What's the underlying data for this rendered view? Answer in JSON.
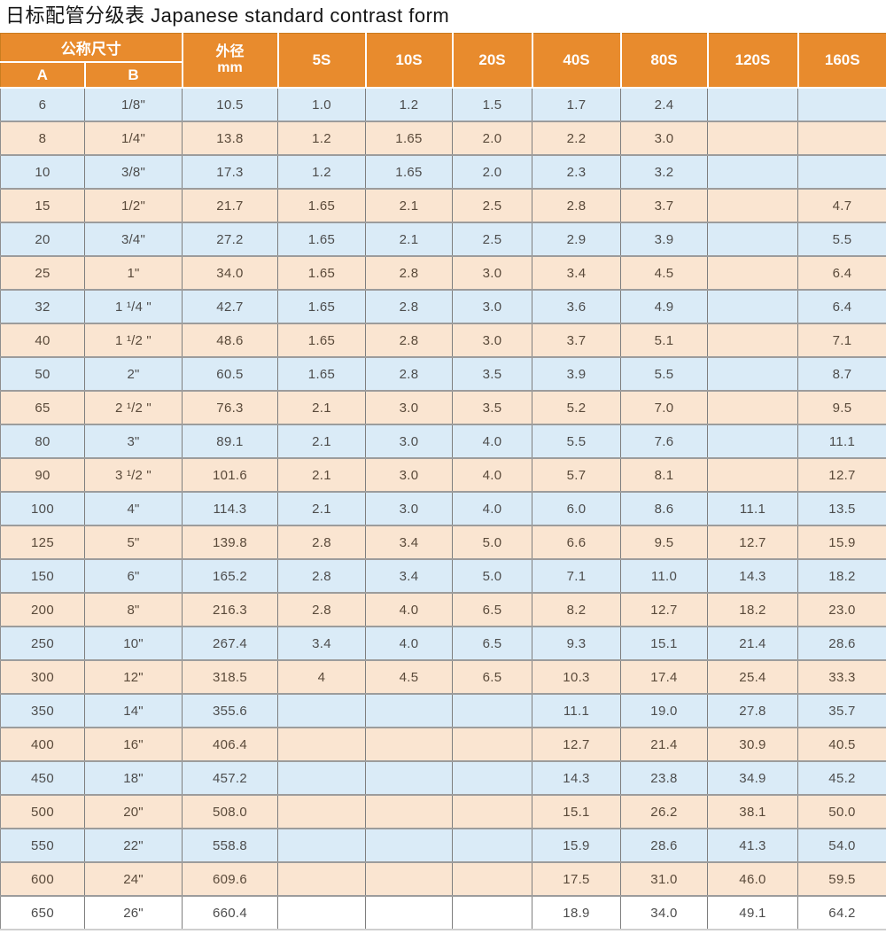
{
  "title": "日标配管分级表 Japanese standard contrast form",
  "colors": {
    "header_bg": "#E88B2D",
    "row_blue": "#DAEBF7",
    "row_peach": "#FAE5D1",
    "row_last_white": "#FFFFFF",
    "header_text": "#FFFFFF",
    "cell_text": "#4D4D4D"
  },
  "table": {
    "header": {
      "nominal_size": "公称尺寸",
      "col_a": "A",
      "col_b": "B",
      "outer_diameter_line1": "外径",
      "outer_diameter_line2": "mm",
      "schedules": [
        "5S",
        "10S",
        "20S",
        "40S",
        "80S",
        "120S",
        "160S"
      ]
    },
    "col_keys": [
      "a",
      "b",
      "od-mm",
      "5s",
      "10s",
      "20s",
      "40s",
      "80s",
      "120s",
      "160s"
    ],
    "rows": [
      [
        "6",
        "1/8\"",
        "10.5",
        "1.0",
        "1.2",
        "1.5",
        "1.7",
        "2.4",
        "",
        ""
      ],
      [
        "8",
        "1/4\"",
        "13.8",
        "1.2",
        "1.65",
        "2.0",
        "2.2",
        "3.0",
        "",
        ""
      ],
      [
        "10",
        "3/8\"",
        "17.3",
        "1.2",
        "1.65",
        "2.0",
        "2.3",
        "3.2",
        "",
        ""
      ],
      [
        "15",
        "1/2\"",
        "21.7",
        "1.65",
        "2.1",
        "2.5",
        "2.8",
        "3.7",
        "",
        "4.7"
      ],
      [
        "20",
        "3/4\"",
        "27.2",
        "1.65",
        "2.1",
        "2.5",
        "2.9",
        "3.9",
        "",
        "5.5"
      ],
      [
        "25",
        "1\"",
        "34.0",
        "1.65",
        "2.8",
        "3.0",
        "3.4",
        "4.5",
        "",
        "6.4"
      ],
      [
        "32",
        "1 ¹/4 \"",
        "42.7",
        "1.65",
        "2.8",
        "3.0",
        "3.6",
        "4.9",
        "",
        "6.4"
      ],
      [
        "40",
        "1 ¹/2 \"",
        "48.6",
        "1.65",
        "2.8",
        "3.0",
        "3.7",
        "5.1",
        "",
        "7.1"
      ],
      [
        "50",
        "2\"",
        "60.5",
        "1.65",
        "2.8",
        "3.5",
        "3.9",
        "5.5",
        "",
        "8.7"
      ],
      [
        "65",
        "2 ¹/2 \"",
        "76.3",
        "2.1",
        "3.0",
        "3.5",
        "5.2",
        "7.0",
        "",
        "9.5"
      ],
      [
        "80",
        "3\"",
        "89.1",
        "2.1",
        "3.0",
        "4.0",
        "5.5",
        "7.6",
        "",
        "11.1"
      ],
      [
        "90",
        "3 ¹/2 \"",
        "101.6",
        "2.1",
        "3.0",
        "4.0",
        "5.7",
        "8.1",
        "",
        "12.7"
      ],
      [
        "100",
        "4\"",
        "114.3",
        "2.1",
        "3.0",
        "4.0",
        "6.0",
        "8.6",
        "11.1",
        "13.5"
      ],
      [
        "125",
        "5\"",
        "139.8",
        "2.8",
        "3.4",
        "5.0",
        "6.6",
        "9.5",
        "12.7",
        "15.9"
      ],
      [
        "150",
        "6\"",
        "165.2",
        "2.8",
        "3.4",
        "5.0",
        "7.1",
        "11.0",
        "14.3",
        "18.2"
      ],
      [
        "200",
        "8\"",
        "216.3",
        "2.8",
        "4.0",
        "6.5",
        "8.2",
        "12.7",
        "18.2",
        "23.0"
      ],
      [
        "250",
        "10\"",
        "267.4",
        "3.4",
        "4.0",
        "6.5",
        "9.3",
        "15.1",
        "21.4",
        "28.6"
      ],
      [
        "300",
        "12\"",
        "318.5",
        "4",
        "4.5",
        "6.5",
        "10.3",
        "17.4",
        "25.4",
        "33.3"
      ],
      [
        "350",
        "14\"",
        "355.6",
        "",
        "",
        "",
        "11.1",
        "19.0",
        "27.8",
        "35.7"
      ],
      [
        "400",
        "16\"",
        "406.4",
        "",
        "",
        "",
        "12.7",
        "21.4",
        "30.9",
        "40.5"
      ],
      [
        "450",
        "18\"",
        "457.2",
        "",
        "",
        "",
        "14.3",
        "23.8",
        "34.9",
        "45.2"
      ],
      [
        "500",
        "20\"",
        "508.0",
        "",
        "",
        "",
        "15.1",
        "26.2",
        "38.1",
        "50.0"
      ],
      [
        "550",
        "22\"",
        "558.8",
        "",
        "",
        "",
        "15.9",
        "28.6",
        "41.3",
        "54.0"
      ],
      [
        "600",
        "24\"",
        "609.6",
        "",
        "",
        "",
        "17.5",
        "31.0",
        "46.0",
        "59.5"
      ],
      [
        "650",
        "26\"",
        "660.4",
        "",
        "",
        "",
        "18.9",
        "34.0",
        "49.1",
        "64.2"
      ]
    ]
  }
}
